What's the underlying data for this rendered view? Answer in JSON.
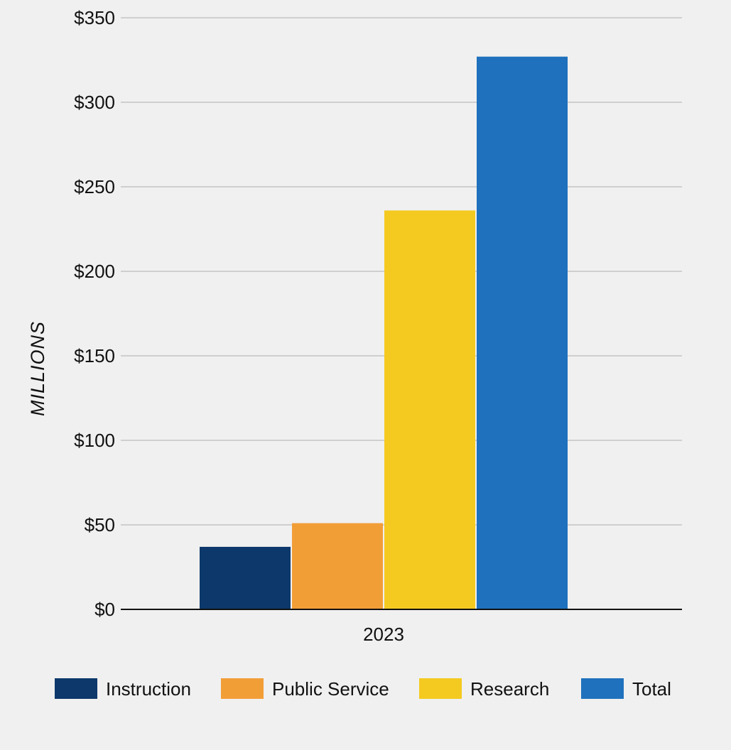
{
  "chart_data": {
    "type": "bar",
    "title": "",
    "xlabel": "",
    "ylabel": "MILLIONS",
    "categories": [
      "2023"
    ],
    "series": [
      {
        "name": "Instruction",
        "values": [
          37
        ],
        "color": "#0c386b"
      },
      {
        "name": "Public Service",
        "values": [
          51
        ],
        "color": "#f29e37"
      },
      {
        "name": "Research",
        "values": [
          236
        ],
        "color": "#f5ca20"
      },
      {
        "name": "Total",
        "values": [
          327
        ],
        "color": "#1f71bd"
      }
    ],
    "ylim": [
      0,
      350
    ],
    "yticks": [
      0,
      50,
      100,
      150,
      200,
      250,
      300,
      350
    ],
    "ytick_labels": [
      "$0",
      "$50",
      "$100",
      "$150",
      "$200",
      "$250",
      "$300",
      "$350"
    ],
    "grid": true,
    "legend_position": "bottom"
  }
}
